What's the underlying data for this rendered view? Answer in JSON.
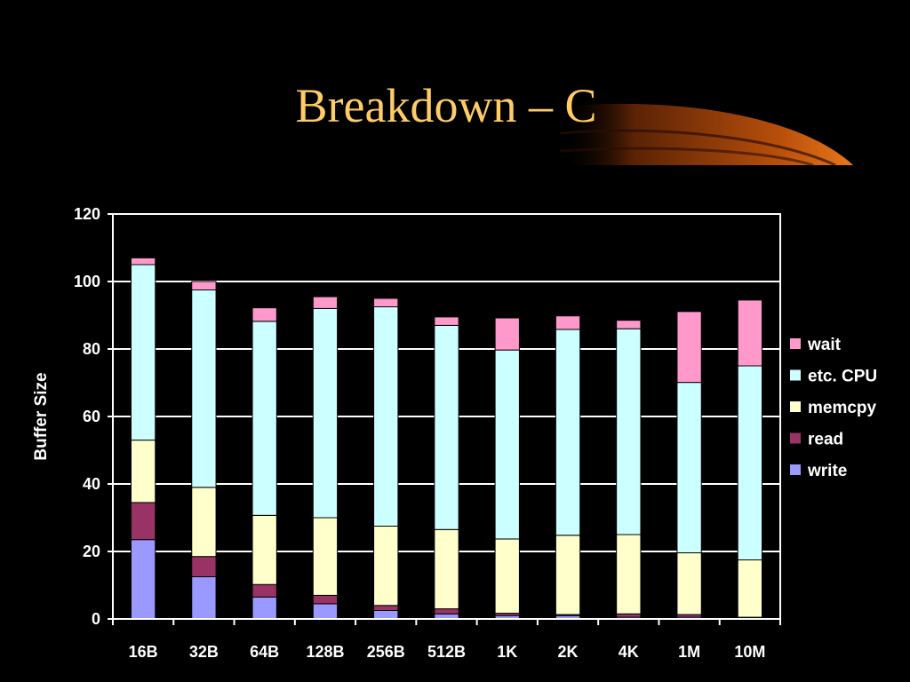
{
  "slide": {
    "title": "Breakdown – C",
    "accent_colors": [
      "#ffcc66",
      "#d9650f",
      "#7a3106"
    ]
  },
  "chart_data": {
    "type": "bar",
    "stacked": true,
    "categories": [
      "16B",
      "32B",
      "64B",
      "128B",
      "256B",
      "512B",
      "1K",
      "2K",
      "4K",
      "1M",
      "10M"
    ],
    "series": [
      {
        "name": "write",
        "color": "#9999ff",
        "values": [
          23.5,
          12.5,
          6.5,
          4.5,
          2.5,
          1.5,
          1.0,
          1.0,
          0.5,
          0.5,
          0.3
        ]
      },
      {
        "name": "read",
        "color": "#993366",
        "values": [
          11.0,
          6.0,
          3.7,
          2.5,
          1.5,
          1.5,
          0.7,
          0.3,
          1.0,
          0.8,
          0.2
        ]
      },
      {
        "name": "memcpy",
        "color": "#ffffcc",
        "values": [
          18.5,
          20.5,
          20.5,
          23.0,
          23.5,
          23.5,
          22.0,
          23.5,
          23.5,
          18.3,
          17.0
        ]
      },
      {
        "name": "etc. CPU",
        "color": "#ccffff",
        "values": [
          52.0,
          58.5,
          57.5,
          62.0,
          65.0,
          60.5,
          56.0,
          61.0,
          61.0,
          50.5,
          57.5
        ]
      },
      {
        "name": "wait",
        "color": "#ff99cc",
        "values": [
          2.0,
          2.5,
          4.0,
          3.5,
          2.5,
          2.5,
          9.5,
          4.0,
          2.5,
          21.0,
          19.5
        ]
      }
    ],
    "ylabel": "Buffer Size",
    "xlabel": "",
    "ylim": [
      0,
      120
    ],
    "yticks": [
      "0",
      "20",
      "40",
      "60",
      "80",
      "100",
      "120"
    ],
    "grid": true,
    "legend": "right"
  }
}
